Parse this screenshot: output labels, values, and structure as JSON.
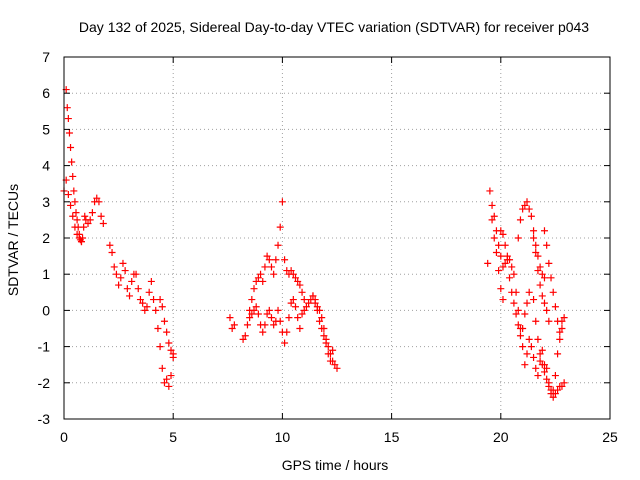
{
  "chart_data": {
    "type": "scatter",
    "title": "Day 132 of 2025, Sidereal Day-to-day VTEC variation (SDTVAR) for receiver p043",
    "xlabel": "GPS time / hours",
    "ylabel": "SDTVAR / TECUs",
    "xlim": [
      0,
      25
    ],
    "ylim": [
      -3,
      7
    ],
    "xticks": [
      0,
      5,
      10,
      15,
      20,
      25
    ],
    "yticks": [
      -3,
      -2,
      -1,
      0,
      1,
      2,
      3,
      4,
      5,
      6,
      7
    ],
    "grid": true,
    "marker": "+",
    "color": "#ff0000",
    "series": [
      {
        "name": "SDTVAR",
        "segments": [
          {
            "x": [
              0.0,
              0.1,
              0.15,
              0.2,
              0.25,
              0.3,
              0.35,
              0.4,
              0.45,
              0.5,
              0.55,
              0.6,
              0.65,
              0.7,
              0.75,
              0.8,
              0.85,
              0.9,
              0.95,
              1.0,
              1.1,
              1.2,
              1.3,
              1.4,
              1.5,
              1.6,
              1.7,
              1.8
            ],
            "y": [
              3.3,
              6.1,
              5.6,
              5.3,
              4.9,
              4.5,
              4.1,
              3.7,
              3.3,
              3.0,
              2.7,
              2.5,
              2.3,
              2.1,
              1.95,
              1.9,
              2.0,
              2.3,
              2.6,
              2.5,
              2.4,
              2.5,
              2.7,
              3.0,
              3.1,
              3.0,
              2.6,
              2.4
            ]
          },
          {
            "x": [
              0.1,
              0.2,
              0.3,
              0.4,
              0.5,
              0.6,
              0.7,
              0.8
            ],
            "y": [
              3.6,
              3.2,
              2.9,
              2.6,
              2.3,
              2.1,
              2.0,
              1.9
            ]
          },
          {
            "x": [
              2.1,
              2.2,
              2.3,
              2.4,
              2.5,
              2.6,
              2.7,
              2.8,
              2.9,
              3.0,
              3.1,
              3.2,
              3.3,
              3.4,
              3.5,
              3.6,
              3.7,
              3.8,
              3.9,
              4.0,
              4.1,
              4.2,
              4.3,
              4.4,
              4.5,
              4.6,
              4.7,
              4.8,
              4.9,
              5.0
            ],
            "y": [
              1.8,
              1.6,
              1.2,
              1.0,
              0.7,
              0.9,
              1.3,
              1.1,
              0.6,
              0.4,
              0.8,
              1.0,
              1.0,
              0.6,
              0.3,
              0.2,
              0.0,
              0.1,
              0.5,
              0.8,
              0.3,
              0.0,
              -0.5,
              -1.0,
              -1.6,
              -2.0,
              -1.9,
              -2.1,
              -1.8,
              -1.2
            ]
          },
          {
            "x": [
              4.4,
              4.5,
              4.6,
              4.7,
              4.8,
              4.9,
              5.0
            ],
            "y": [
              0.3,
              0.1,
              -0.3,
              -0.6,
              -0.9,
              -1.1,
              -1.3
            ]
          },
          {
            "x": [
              7.6,
              7.7,
              7.8
            ],
            "y": [
              -0.2,
              -0.5,
              -0.4
            ]
          },
          {
            "x": [
              8.2,
              8.3,
              8.4,
              8.5,
              8.6,
              8.7,
              8.8,
              8.9,
              9.0,
              9.1,
              9.2,
              9.3,
              9.4,
              9.5,
              9.6,
              9.7,
              9.8,
              9.9,
              10.0,
              10.1,
              10.2,
              10.3,
              10.4,
              10.5,
              10.6,
              10.7,
              10.8,
              10.9,
              11.0,
              11.1,
              11.2,
              11.3,
              11.4,
              11.5,
              11.6,
              11.7,
              11.8,
              11.9,
              12.0,
              12.1,
              12.2,
              12.3,
              12.4,
              12.5
            ],
            "y": [
              -0.8,
              -0.7,
              -0.4,
              -0.2,
              -0.1,
              0.0,
              0.1,
              -0.1,
              -0.4,
              -0.6,
              -0.4,
              -0.1,
              0.0,
              -0.2,
              -0.4,
              -0.3,
              0.0,
              -0.3,
              -0.6,
              -0.9,
              -0.6,
              -0.2,
              0.2,
              0.3,
              0.1,
              -0.2,
              -0.5,
              -0.1,
              0.0,
              0.1,
              0.2,
              0.3,
              0.4,
              0.3,
              0.1,
              0.0,
              -0.2,
              -0.5,
              -0.8,
              -1.0,
              -1.2,
              -1.4,
              -1.5,
              -1.6
            ]
          },
          {
            "x": [
              8.5,
              8.6,
              8.7,
              8.8,
              8.9,
              9.0,
              9.1,
              9.2,
              9.3,
              9.4,
              9.5,
              9.6,
              9.7,
              9.8,
              9.9,
              10.0,
              10.1,
              10.2,
              10.3,
              10.4,
              10.5,
              10.6,
              10.7,
              10.8,
              10.9,
              11.0
            ],
            "y": [
              0.0,
              0.3,
              0.6,
              0.8,
              0.9,
              1.0,
              0.8,
              1.2,
              1.5,
              1.4,
              1.2,
              1.0,
              1.4,
              1.8,
              2.3,
              3.0,
              1.4,
              1.1,
              1.0,
              1.1,
              1.0,
              0.9,
              0.8,
              0.7,
              0.5,
              0.3
            ]
          },
          {
            "x": [
              11.4,
              11.5,
              11.6,
              11.7,
              11.8,
              11.9,
              12.0,
              12.1,
              12.2,
              12.3
            ],
            "y": [
              0.4,
              0.2,
              0.0,
              -0.3,
              -0.5,
              -0.7,
              -0.9,
              -1.2,
              -1.4,
              -1.1
            ]
          },
          {
            "x": [
              19.4,
              19.5,
              19.6,
              19.7,
              19.8,
              19.9,
              20.0,
              20.1,
              20.2,
              20.3,
              20.4,
              20.5,
              20.6,
              20.7,
              20.8,
              20.9,
              21.0,
              21.1,
              21.2,
              21.3,
              21.4,
              21.5,
              21.6,
              21.7,
              21.8,
              21.9,
              22.0,
              22.1,
              22.2,
              22.3,
              22.4,
              22.5,
              22.6,
              22.7,
              22.8,
              22.9
            ],
            "y": [
              1.3,
              3.3,
              2.9,
              2.6,
              2.2,
              1.8,
              1.5,
              1.2,
              1.3,
              1.4,
              1.4,
              1.2,
              1.0,
              0.5,
              0.0,
              -0.5,
              -1.0,
              -1.5,
              -1.2,
              -0.8,
              -1.0,
              -1.3,
              -1.6,
              -1.8,
              -1.4,
              -1.1,
              -1.5,
              -1.9,
              -2.1,
              -2.3,
              -2.2,
              -1.8,
              -1.2,
              -0.8,
              -0.5,
              -0.2
            ]
          },
          {
            "x": [
              19.6,
              19.7,
              19.8,
              19.9,
              20.0,
              20.1
            ],
            "y": [
              2.5,
              2.0,
              1.6,
              1.1,
              0.6,
              0.3
            ]
          },
          {
            "x": [
              20.0,
              20.1,
              20.2,
              20.3,
              20.4,
              20.5,
              20.6,
              20.7,
              20.8,
              20.9,
              21.0,
              21.1,
              21.2,
              21.3
            ],
            "y": [
              2.2,
              2.1,
              1.8,
              1.5,
              0.9,
              0.5,
              0.2,
              -0.1,
              -0.4,
              -0.7,
              -0.5,
              -0.1,
              0.2,
              0.5
            ]
          },
          {
            "x": [
              20.8,
              20.9,
              21.0,
              21.1,
              21.2,
              21.3,
              21.4,
              21.5,
              21.6,
              21.7,
              21.8,
              21.9,
              22.0
            ],
            "y": [
              2.0,
              2.5,
              2.8,
              2.9,
              3.0,
              2.8,
              2.6,
              2.2,
              1.8,
              1.5,
              1.2,
              1.0,
              0.9
            ]
          },
          {
            "x": [
              21.5,
              21.6,
              21.7,
              21.8,
              21.9,
              22.0,
              22.1,
              22.2
            ],
            "y": [
              2.0,
              1.6,
              1.1,
              0.7,
              0.4,
              0.2,
              0.0,
              -0.3
            ]
          },
          {
            "x": [
              22.0,
              22.1,
              22.2,
              22.3,
              22.4,
              22.5,
              22.6,
              22.7,
              22.8
            ],
            "y": [
              2.2,
              1.8,
              1.3,
              0.9,
              0.5,
              0.1,
              -0.3,
              -0.6,
              -0.3
            ]
          },
          {
            "x": [
              21.5,
              21.6,
              21.7,
              21.8,
              21.9,
              22.0,
              22.1,
              22.2,
              22.3,
              22.4
            ],
            "y": [
              0.3,
              -0.3,
              -0.8,
              -1.2,
              -1.5,
              -1.7,
              -1.6,
              -2.0,
              -2.2,
              -2.4
            ]
          },
          {
            "x": [
              22.5,
              22.6,
              22.7,
              22.8,
              22.9
            ],
            "y": [
              -2.3,
              -2.2,
              -2.1,
              -2.1,
              -2.0
            ]
          }
        ]
      }
    ]
  }
}
